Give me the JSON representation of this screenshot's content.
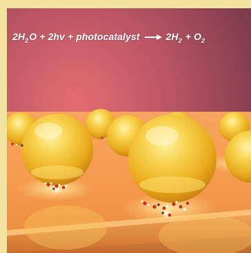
{
  "equation": {
    "reactant_1_coeff": "2H",
    "reactant_1_sub": "2",
    "reactant_1_tail": "O",
    "plus_1": "+",
    "reactant_2": "2hv",
    "plus_2": "+",
    "reactant_3": "photocatalyst",
    "product_1_coeff": "2H",
    "product_1_sub": "2",
    "plus_3": "+",
    "product_2_coeff": "O",
    "product_2_sub": "2"
  },
  "colors": {
    "frame_border": "#f3e3a1",
    "background_glow": "#de6f73",
    "background_dark": "#7b3b4b",
    "sphere_gold": "#f5c33a",
    "surface_orange": "#f39a4a"
  },
  "icons": {
    "reaction_arrow": "reaction-arrow-icon"
  }
}
